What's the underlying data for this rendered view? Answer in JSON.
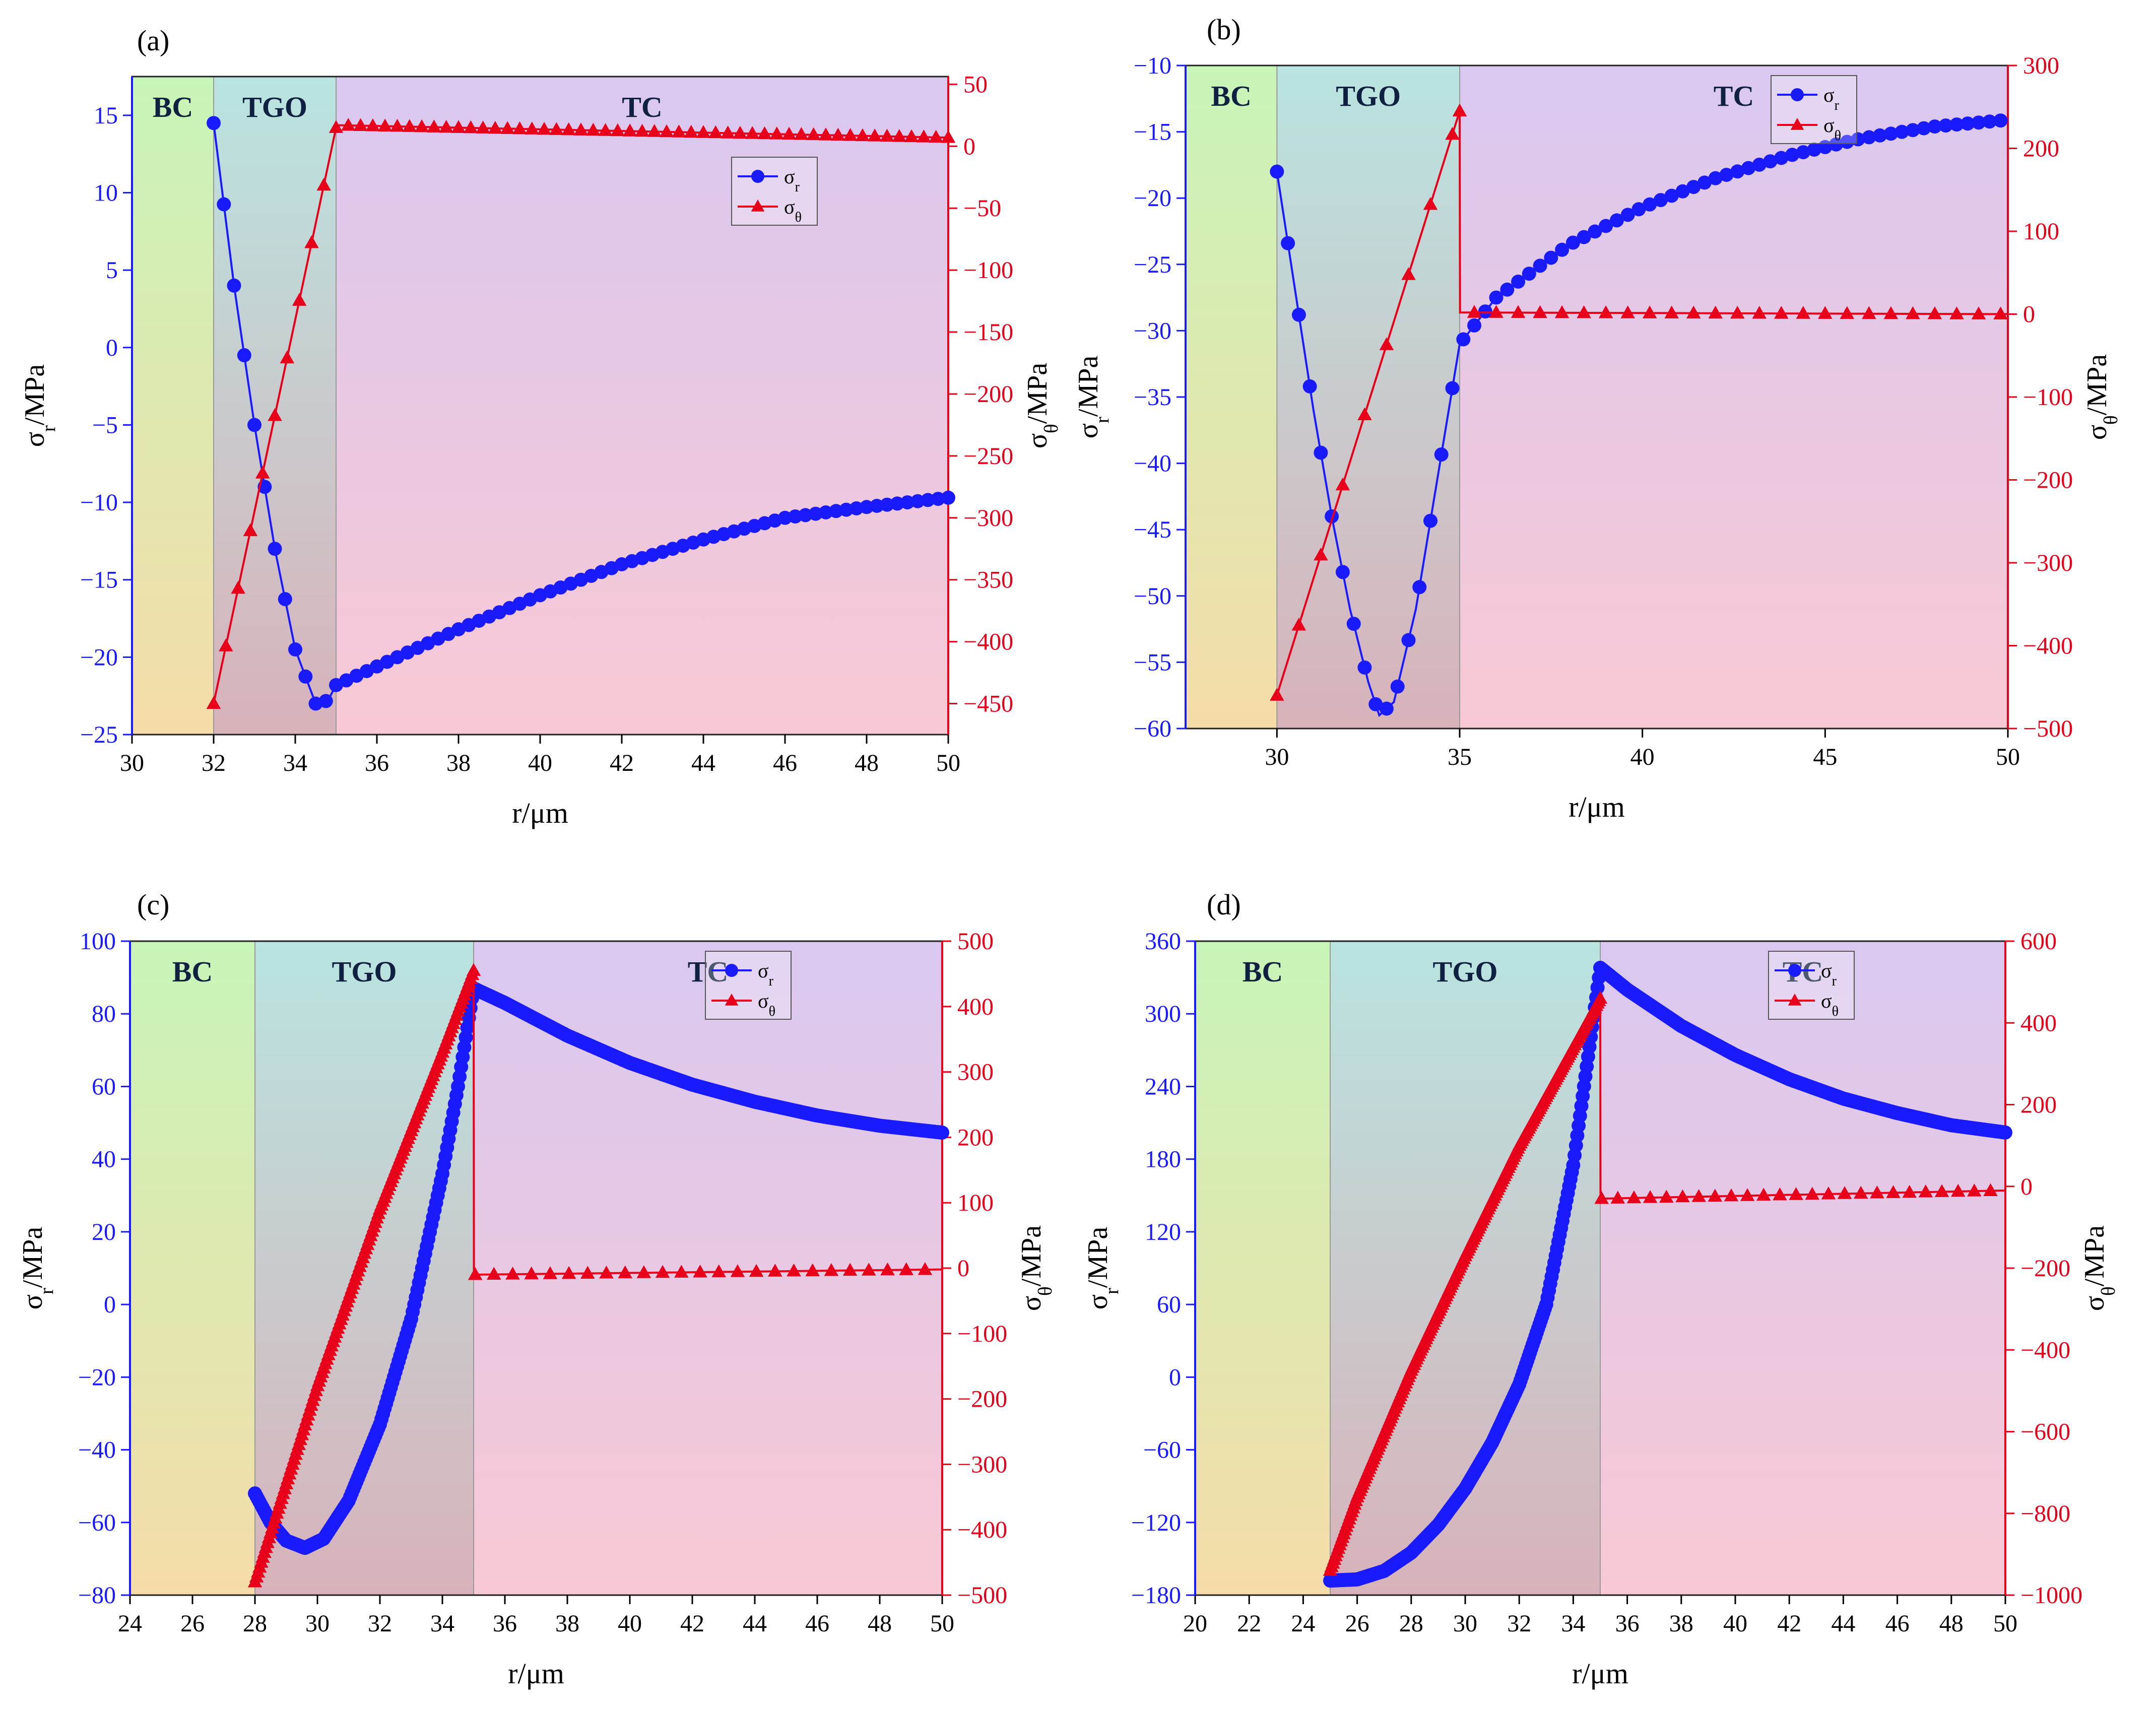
{
  "figure": {
    "description_free": true,
    "colors": {
      "sigma_r": "#1a1aff",
      "sigma_theta": "#e8001a",
      "region_BC_top": "#c8f5b8",
      "region_BC_bottom": "#f5dca8",
      "region_TGO_top": "#b9e4e0",
      "region_TGO_bottom": "#d8b2ba",
      "region_TC_top": "#d9c8f0",
      "region_TC_bottom": "#f8c8d4"
    }
  },
  "chart_data": [
    {
      "panel": "(a)",
      "type": "line",
      "xlabel": "r/μm",
      "ylabel_left": "σr/MPa",
      "ylabel_right": "σθ/MPa",
      "xlim": [
        30,
        50
      ],
      "ylim_left": [
        -25,
        17.5
      ],
      "ylim_right": [
        -475,
        56.25
      ],
      "xticks": [
        30,
        32,
        34,
        36,
        38,
        40,
        42,
        44,
        46,
        48,
        50
      ],
      "yticks_left": [
        15,
        10,
        5,
        0,
        -5,
        -10,
        -15,
        -20,
        -25
      ],
      "yticks_right": [
        50,
        0,
        -50,
        -100,
        -150,
        -200,
        -250,
        -300,
        -350,
        -400,
        -450
      ],
      "regions": [
        {
          "label": "BC",
          "from": 30,
          "to": 32
        },
        {
          "label": "TGO",
          "from": 32,
          "to": 35
        },
        {
          "label": "TC",
          "from": 35,
          "to": 50
        }
      ],
      "legend": {
        "position": "top-right",
        "entries": [
          "σr",
          "σθ"
        ]
      },
      "series": [
        {
          "name": "σr",
          "axis": "left",
          "marker": "circle",
          "step": 0.25,
          "x": [
            32,
            32.5,
            33,
            33.5,
            34,
            34.5,
            34.8,
            35,
            36,
            38,
            40,
            42,
            44,
            46,
            48,
            50
          ],
          "y": [
            14.5,
            4,
            -5,
            -13,
            -19.5,
            -23,
            -22.8,
            -21.8,
            -20.6,
            -18.2,
            -16,
            -14,
            -12.4,
            -11,
            -10.3,
            -9.7
          ]
        },
        {
          "name": "σθ",
          "axis": "right",
          "marker": "triangle",
          "step": 0.3,
          "x": [
            32,
            35,
            35.01,
            50
          ],
          "y": [
            -450,
            15,
            17,
            7
          ]
        }
      ]
    },
    {
      "panel": "(b)",
      "type": "line",
      "xlabel": "r/μm",
      "ylabel_left": "σr/MPa",
      "ylabel_right": "σθ/MPa",
      "xlim": [
        27.5,
        50
      ],
      "ylim_left": [
        -60,
        -10
      ],
      "ylim_right": [
        -500,
        300
      ],
      "xticks": [
        30,
        35,
        40,
        45,
        50
      ],
      "yticks_left": [
        -10,
        -15,
        -20,
        -25,
        -30,
        -35,
        -40,
        -45,
        -50,
        -55,
        -60
      ],
      "yticks_right": [
        300,
        200,
        100,
        0,
        -100,
        -200,
        -300,
        -400,
        -500
      ],
      "regions": [
        {
          "label": "BC",
          "from": 27.5,
          "to": 30
        },
        {
          "label": "TGO",
          "from": 30,
          "to": 35
        },
        {
          "label": "TC",
          "from": 35,
          "to": 50
        }
      ],
      "legend": {
        "position": "top-right",
        "entries": [
          "σr",
          "σθ"
        ]
      },
      "series": [
        {
          "name": "σr",
          "axis": "left",
          "marker": "circle",
          "step": 0.3,
          "x": [
            30,
            30.5,
            31,
            31.5,
            32,
            32.5,
            32.8,
            33.2,
            33.8,
            34.4,
            35,
            36,
            38,
            40,
            42,
            44,
            46,
            48,
            50
          ],
          "y": [
            -18,
            -27,
            -36,
            -44,
            -51,
            -56.5,
            -59,
            -58,
            -51,
            -41,
            -31,
            -27.5,
            -23.5,
            -20.7,
            -18.5,
            -16.8,
            -15.5,
            -14.6,
            -14.1
          ]
        },
        {
          "name": "σθ",
          "axis": "right",
          "marker": "triangle",
          "step": 0.6,
          "x": [
            30,
            35,
            35.01,
            50
          ],
          "y": [
            -460,
            245,
            2,
            0
          ]
        }
      ]
    },
    {
      "panel": "(c)",
      "type": "line",
      "xlabel": "r/μm",
      "ylabel_left": "σr/MPa",
      "ylabel_right": "σθ/MPa",
      "xlim": [
        24,
        50
      ],
      "ylim_left": [
        -80,
        100
      ],
      "ylim_right": [
        -500,
        500
      ],
      "xticks": [
        24,
        26,
        28,
        30,
        32,
        34,
        36,
        38,
        40,
        42,
        44,
        46,
        48,
        50
      ],
      "yticks_left": [
        100,
        80,
        60,
        40,
        20,
        0,
        -20,
        -40,
        -60,
        -80
      ],
      "yticks_right": [
        500,
        400,
        300,
        200,
        100,
        0,
        -100,
        -200,
        -300,
        -400,
        -500
      ],
      "regions": [
        {
          "label": "BC",
          "from": 24,
          "to": 28
        },
        {
          "label": "TGO",
          "from": 28,
          "to": 35
        },
        {
          "label": "TC",
          "from": 35,
          "to": 50
        }
      ],
      "legend": {
        "position": "top-right",
        "entries": [
          "σr",
          "σθ"
        ]
      },
      "series": [
        {
          "name": "σr",
          "axis": "left",
          "marker": "circle",
          "step": 0.05,
          "x": [
            28,
            28.5,
            29,
            29.6,
            30.2,
            31,
            32,
            33,
            34,
            34.5,
            35,
            36,
            38,
            40,
            42,
            44,
            46,
            48,
            50
          ],
          "y": [
            -52,
            -60,
            -65,
            -67,
            -64.5,
            -54,
            -33,
            -4,
            36,
            60,
            87,
            83,
            74,
            66.5,
            60.5,
            55.8,
            52,
            49.2,
            47.3
          ]
        },
        {
          "name": "σθ",
          "axis": "right",
          "marker": "triangle",
          "step": 0.05,
          "step_after_jump": 0.6,
          "x": [
            28,
            30,
            32,
            34,
            35,
            35.01,
            50
          ],
          "y": [
            -480,
            -180,
            90,
            330,
            455,
            -10,
            -2
          ]
        }
      ]
    },
    {
      "panel": "(d)",
      "type": "line",
      "xlabel": "r/μm",
      "ylabel_left": "σr/MPa",
      "ylabel_right": "σθ/MPa",
      "xlim": [
        20,
        50
      ],
      "ylim_left": [
        -180,
        360
      ],
      "ylim_right": [
        -1000,
        600
      ],
      "xticks": [
        20,
        22,
        24,
        26,
        28,
        30,
        32,
        34,
        36,
        38,
        40,
        42,
        44,
        46,
        48,
        50
      ],
      "yticks_left": [
        360,
        300,
        240,
        180,
        120,
        60,
        0,
        -60,
        -120,
        -180
      ],
      "yticks_right": [
        600,
        400,
        200,
        0,
        -200,
        -400,
        -600,
        -800,
        -1000
      ],
      "regions": [
        {
          "label": "BC",
          "from": 20,
          "to": 25
        },
        {
          "label": "TGO",
          "from": 25,
          "to": 35
        },
        {
          "label": "TC",
          "from": 35,
          "to": 50
        }
      ],
      "legend": {
        "position": "top-right",
        "entries": [
          "σr",
          "σθ"
        ]
      },
      "series": [
        {
          "name": "σr",
          "axis": "left",
          "marker": "circle",
          "step": 0.05,
          "x": [
            25,
            26,
            27,
            28,
            29,
            30,
            31,
            32,
            33,
            34,
            35,
            36,
            38,
            40,
            42,
            44,
            46,
            48,
            50
          ],
          "y": [
            -168,
            -167,
            -160,
            -145,
            -122,
            -92,
            -54,
            -6,
            60,
            175,
            338,
            320,
            290,
            266,
            246,
            230,
            218,
            208,
            202
          ]
        },
        {
          "name": "σθ",
          "axis": "right",
          "marker": "triangle",
          "step": 0.05,
          "step_after_jump": 0.6,
          "x": [
            25,
            26,
            28,
            30,
            32,
            34,
            35,
            35.01,
            50
          ],
          "y": [
            -940,
            -760,
            -450,
            -170,
            100,
            340,
            460,
            -30,
            -10
          ]
        }
      ]
    }
  ]
}
